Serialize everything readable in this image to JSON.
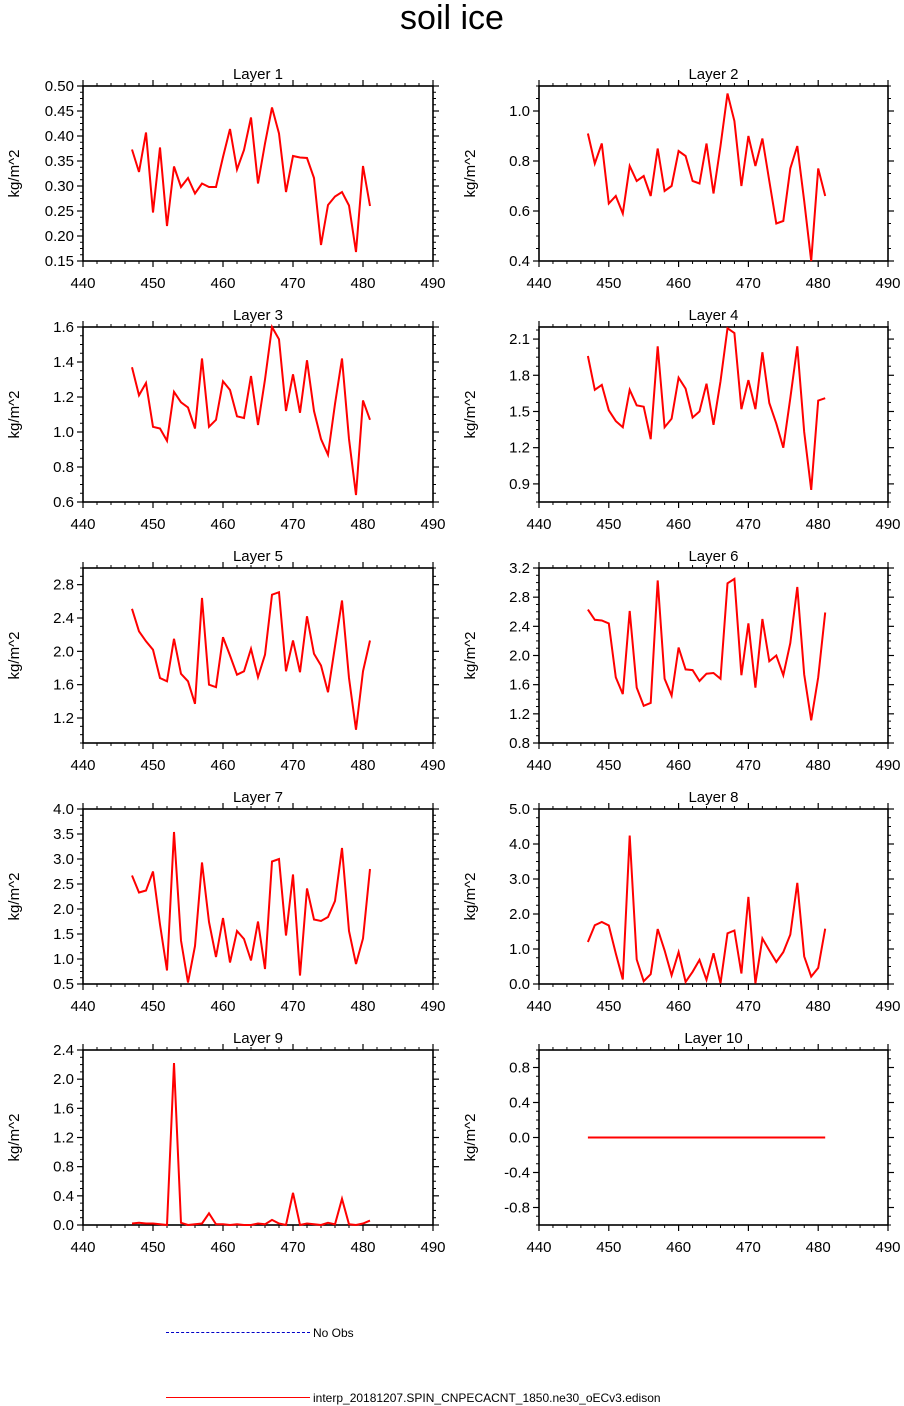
{
  "title": "soil ice",
  "colors": {
    "model": "#ff0000",
    "obs": "#0000c8",
    "axis": "#000000"
  },
  "legend": {
    "obs_label": "No Obs",
    "model_label": "interp_20181207.SPIN_CNPECACNT_1850.ne30_oECv3.edison"
  },
  "chart_data": [
    {
      "type": "line",
      "title": "Layer 1",
      "ylabel": "kg/m^2",
      "xlim": [
        440,
        490
      ],
      "xticks": [
        440,
        450,
        460,
        470,
        480,
        490
      ],
      "ylim": [
        0.15,
        0.5
      ],
      "yticks": [
        0.15,
        0.2,
        0.25,
        0.3,
        0.35,
        0.4,
        0.45,
        0.5
      ],
      "ydec": 2,
      "series": [
        {
          "x": [
            447,
            448,
            449,
            450,
            451,
            452,
            453,
            454,
            455,
            456,
            457,
            458,
            459,
            460,
            461,
            462,
            463,
            464,
            465,
            466,
            467,
            468,
            469,
            470,
            471,
            472,
            473,
            474,
            475,
            476,
            477,
            478,
            479,
            480,
            481
          ],
          "values": [
            0.373,
            0.328,
            0.407,
            0.247,
            0.377,
            0.22,
            0.339,
            0.298,
            0.316,
            0.285,
            0.305,
            0.298,
            0.298,
            0.358,
            0.414,
            0.333,
            0.372,
            0.437,
            0.305,
            0.385,
            0.457,
            0.405,
            0.288,
            0.36,
            0.357,
            0.356,
            0.316,
            0.182,
            0.262,
            0.279,
            0.288,
            0.261,
            0.168,
            0.34,
            0.26
          ]
        }
      ]
    },
    {
      "type": "line",
      "title": "Layer 2",
      "ylabel": "kg/m^2",
      "xlim": [
        440,
        490
      ],
      "xticks": [
        440,
        450,
        460,
        470,
        480,
        490
      ],
      "ylim": [
        0.4,
        1.1
      ],
      "yticks": [
        0.4,
        0.6,
        0.8,
        1.0
      ],
      "ydec": 1,
      "series": [
        {
          "x": [
            447,
            448,
            449,
            450,
            451,
            452,
            453,
            454,
            455,
            456,
            457,
            458,
            459,
            460,
            461,
            462,
            463,
            464,
            465,
            466,
            467,
            468,
            469,
            470,
            471,
            472,
            473,
            474,
            475,
            476,
            477,
            478,
            479,
            480,
            481
          ],
          "values": [
            0.91,
            0.79,
            0.87,
            0.63,
            0.66,
            0.59,
            0.78,
            0.72,
            0.74,
            0.66,
            0.85,
            0.68,
            0.7,
            0.84,
            0.82,
            0.72,
            0.71,
            0.87,
            0.67,
            0.86,
            1.07,
            0.96,
            0.7,
            0.9,
            0.78,
            0.89,
            0.72,
            0.55,
            0.56,
            0.77,
            0.86,
            0.64,
            0.4,
            0.77,
            0.66
          ]
        }
      ]
    },
    {
      "type": "line",
      "title": "Layer 3",
      "ylabel": "kg/m^2",
      "xlim": [
        440,
        490
      ],
      "xticks": [
        440,
        450,
        460,
        470,
        480,
        490
      ],
      "ylim": [
        0.6,
        1.6
      ],
      "yticks": [
        0.6,
        0.8,
        1.0,
        1.2,
        1.4,
        1.6
      ],
      "ydec": 1,
      "series": [
        {
          "x": [
            447,
            448,
            449,
            450,
            451,
            452,
            453,
            454,
            455,
            456,
            457,
            458,
            459,
            460,
            461,
            462,
            463,
            464,
            465,
            466,
            467,
            468,
            469,
            470,
            471,
            472,
            473,
            474,
            475,
            476,
            477,
            478,
            479,
            480,
            481
          ],
          "values": [
            1.37,
            1.21,
            1.28,
            1.03,
            1.02,
            0.95,
            1.23,
            1.17,
            1.14,
            1.02,
            1.42,
            1.03,
            1.07,
            1.29,
            1.24,
            1.09,
            1.08,
            1.32,
            1.04,
            1.3,
            1.6,
            1.53,
            1.12,
            1.33,
            1.11,
            1.41,
            1.12,
            0.96,
            0.87,
            1.16,
            1.42,
            0.96,
            0.64,
            1.18,
            1.07
          ]
        }
      ]
    },
    {
      "type": "line",
      "title": "Layer 4",
      "ylabel": "kg/m^2",
      "xlim": [
        440,
        490
      ],
      "xticks": [
        440,
        450,
        460,
        470,
        480,
        490
      ],
      "ylim": [
        0.75,
        2.2
      ],
      "yticks": [
        0.9,
        1.2,
        1.5,
        1.8,
        2.1
      ],
      "ydec": 1,
      "series": [
        {
          "x": [
            447,
            448,
            449,
            450,
            451,
            452,
            453,
            454,
            455,
            456,
            457,
            458,
            459,
            460,
            461,
            462,
            463,
            464,
            465,
            466,
            467,
            468,
            469,
            470,
            471,
            472,
            473,
            474,
            475,
            476,
            477,
            478,
            479,
            480,
            481
          ],
          "values": [
            1.96,
            1.68,
            1.72,
            1.51,
            1.42,
            1.37,
            1.68,
            1.55,
            1.54,
            1.27,
            2.04,
            1.37,
            1.44,
            1.78,
            1.69,
            1.45,
            1.5,
            1.73,
            1.39,
            1.75,
            2.19,
            2.15,
            1.52,
            1.76,
            1.52,
            1.99,
            1.57,
            1.4,
            1.2,
            1.61,
            2.04,
            1.33,
            0.85,
            1.59,
            1.61
          ]
        }
      ]
    },
    {
      "type": "line",
      "title": "Layer 5",
      "ylabel": "kg/m^2",
      "xlim": [
        440,
        490
      ],
      "xticks": [
        440,
        450,
        460,
        470,
        480,
        490
      ],
      "ylim": [
        0.9,
        3.0
      ],
      "yticks": [
        1.2,
        1.6,
        2.0,
        2.4,
        2.8
      ],
      "ydec": 1,
      "series": [
        {
          "x": [
            447,
            448,
            449,
            450,
            451,
            452,
            453,
            454,
            455,
            456,
            457,
            458,
            459,
            460,
            461,
            462,
            463,
            464,
            465,
            466,
            467,
            468,
            469,
            470,
            471,
            472,
            473,
            474,
            475,
            476,
            477,
            478,
            479,
            480,
            481
          ],
          "values": [
            2.51,
            2.24,
            2.12,
            2.02,
            1.68,
            1.64,
            2.15,
            1.73,
            1.64,
            1.37,
            2.64,
            1.6,
            1.57,
            2.17,
            1.95,
            1.72,
            1.76,
            2.03,
            1.69,
            1.96,
            2.68,
            2.71,
            1.76,
            2.13,
            1.75,
            2.42,
            1.97,
            1.83,
            1.51,
            2.06,
            2.61,
            1.68,
            1.06,
            1.76,
            2.13
          ]
        }
      ]
    },
    {
      "type": "line",
      "title": "Layer 6",
      "ylabel": "kg/m^2",
      "xlim": [
        440,
        490
      ],
      "xticks": [
        440,
        450,
        460,
        470,
        480,
        490
      ],
      "ylim": [
        0.8,
        3.2
      ],
      "yticks": [
        0.8,
        1.2,
        1.6,
        2.0,
        2.4,
        2.8,
        3.2
      ],
      "ydec": 1,
      "series": [
        {
          "x": [
            447,
            448,
            449,
            450,
            451,
            452,
            453,
            454,
            455,
            456,
            457,
            458,
            459,
            460,
            461,
            462,
            463,
            464,
            465,
            466,
            467,
            468,
            469,
            470,
            471,
            472,
            473,
            474,
            475,
            476,
            477,
            478,
            479,
            480,
            481
          ],
          "values": [
            2.63,
            2.49,
            2.48,
            2.44,
            1.7,
            1.47,
            2.61,
            1.56,
            1.31,
            1.35,
            3.03,
            1.68,
            1.45,
            2.11,
            1.81,
            1.8,
            1.65,
            1.75,
            1.76,
            1.68,
            2.99,
            3.05,
            1.73,
            2.44,
            1.56,
            2.5,
            1.92,
            2.0,
            1.73,
            2.17,
            2.94,
            1.74,
            1.11,
            1.7,
            2.59
          ]
        }
      ]
    },
    {
      "type": "line",
      "title": "Layer 7",
      "ylabel": "kg/m^2",
      "xlim": [
        440,
        490
      ],
      "xticks": [
        440,
        450,
        460,
        470,
        480,
        490
      ],
      "ylim": [
        0.5,
        4.0
      ],
      "yticks": [
        0.5,
        1.0,
        1.5,
        2.0,
        2.5,
        3.0,
        3.5,
        4.0
      ],
      "ydec": 1,
      "series": [
        {
          "x": [
            447,
            448,
            449,
            450,
            451,
            452,
            453,
            454,
            455,
            456,
            457,
            458,
            459,
            460,
            461,
            462,
            463,
            464,
            465,
            466,
            467,
            468,
            469,
            470,
            471,
            472,
            473,
            474,
            475,
            476,
            477,
            478,
            479,
            480,
            481
          ],
          "values": [
            2.67,
            2.33,
            2.37,
            2.75,
            1.69,
            0.77,
            3.54,
            1.37,
            0.53,
            1.26,
            2.93,
            1.74,
            1.04,
            1.82,
            0.93,
            1.56,
            1.4,
            0.97,
            1.75,
            0.8,
            2.95,
            3.0,
            1.47,
            2.69,
            0.67,
            2.41,
            1.79,
            1.76,
            1.84,
            2.16,
            3.22,
            1.56,
            0.9,
            1.41,
            2.8
          ]
        }
      ]
    },
    {
      "type": "line",
      "title": "Layer 8",
      "ylabel": "kg/m^2",
      "xlim": [
        440,
        490
      ],
      "xticks": [
        440,
        450,
        460,
        470,
        480,
        490
      ],
      "ylim": [
        0.0,
        5.0
      ],
      "yticks": [
        0.0,
        1.0,
        2.0,
        3.0,
        4.0,
        5.0
      ],
      "ydec": 1,
      "series": [
        {
          "x": [
            447,
            448,
            449,
            450,
            451,
            452,
            453,
            454,
            455,
            456,
            457,
            458,
            459,
            460,
            461,
            462,
            463,
            464,
            465,
            466,
            467,
            468,
            469,
            470,
            471,
            472,
            473,
            474,
            475,
            476,
            477,
            478,
            479,
            480,
            481
          ],
          "values": [
            1.2,
            1.68,
            1.77,
            1.67,
            0.87,
            0.13,
            4.24,
            0.7,
            0.08,
            0.28,
            1.57,
            0.96,
            0.25,
            0.91,
            0.06,
            0.35,
            0.69,
            0.12,
            0.88,
            0.02,
            1.45,
            1.53,
            0.3,
            2.49,
            0.02,
            1.3,
            0.96,
            0.63,
            0.91,
            1.41,
            2.89,
            0.79,
            0.21,
            0.46,
            1.58
          ]
        }
      ]
    },
    {
      "type": "line",
      "title": "Layer 9",
      "ylabel": "kg/m^2",
      "xlim": [
        440,
        490
      ],
      "xticks": [
        440,
        450,
        460,
        470,
        480,
        490
      ],
      "ylim": [
        0.0,
        2.4
      ],
      "yticks": [
        0.0,
        0.4,
        0.8,
        1.2,
        1.6,
        2.0,
        2.4
      ],
      "ydec": 1,
      "series": [
        {
          "x": [
            447,
            448,
            449,
            450,
            451,
            452,
            453,
            454,
            455,
            456,
            457,
            458,
            459,
            460,
            461,
            462,
            463,
            464,
            465,
            466,
            467,
            468,
            469,
            470,
            471,
            472,
            473,
            474,
            475,
            476,
            477,
            478,
            479,
            480,
            481
          ],
          "values": [
            0.02,
            0.03,
            0.02,
            0.02,
            0.01,
            0.0,
            2.22,
            0.03,
            0.0,
            0.01,
            0.02,
            0.16,
            0.01,
            0.01,
            0.0,
            0.01,
            0.0,
            0.0,
            0.02,
            0.01,
            0.07,
            0.02,
            0.0,
            0.44,
            0.0,
            0.02,
            0.01,
            0.0,
            0.03,
            0.01,
            0.36,
            0.01,
            0.0,
            0.02,
            0.06
          ]
        }
      ]
    },
    {
      "type": "line",
      "title": "Layer 10",
      "ylabel": "kg/m^2",
      "xlim": [
        440,
        490
      ],
      "xticks": [
        440,
        450,
        460,
        470,
        480,
        490
      ],
      "ylim": [
        -1.0,
        1.0
      ],
      "yticks": [
        -0.8,
        -0.4,
        0.0,
        0.4,
        0.8
      ],
      "ydec": 1,
      "series": [
        {
          "x": [
            447,
            448,
            449,
            450,
            451,
            452,
            453,
            454,
            455,
            456,
            457,
            458,
            459,
            460,
            461,
            462,
            463,
            464,
            465,
            466,
            467,
            468,
            469,
            470,
            471,
            472,
            473,
            474,
            475,
            476,
            477,
            478,
            479,
            480,
            481
          ],
          "values": [
            0,
            0,
            0,
            0,
            0,
            0,
            0,
            0,
            0,
            0,
            0,
            0,
            0,
            0,
            0,
            0,
            0,
            0,
            0,
            0,
            0,
            0,
            0,
            0,
            0,
            0,
            0,
            0,
            0,
            0,
            0,
            0,
            0,
            0,
            0
          ]
        }
      ]
    }
  ]
}
